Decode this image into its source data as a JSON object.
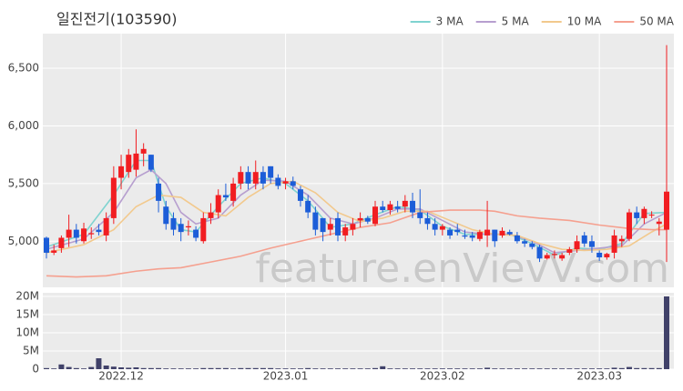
{
  "chart_data": {
    "type": "candlestick",
    "title": "일진전기(103590)",
    "watermark": "feature.enVievV.com",
    "up_color": "#f11d21",
    "down_color": "#1c5dd8",
    "volume_color": "#404169",
    "grid": true,
    "legend": "top-right",
    "categories": [
      null,
      null,
      null,
      null,
      null,
      null,
      null,
      null,
      null,
      null,
      "2022.12",
      null,
      null,
      null,
      null,
      null,
      null,
      null,
      null,
      null,
      null,
      null,
      null,
      null,
      null,
      null,
      null,
      null,
      null,
      null,
      null,
      null,
      "2023.01",
      null,
      null,
      null,
      null,
      null,
      null,
      null,
      null,
      null,
      null,
      null,
      null,
      null,
      null,
      null,
      null,
      null,
      null,
      null,
      null,
      "2023.02",
      null,
      null,
      null,
      null,
      null,
      null,
      null,
      null,
      null,
      null,
      null,
      null,
      null,
      null,
      null,
      null,
      null,
      null,
      null,
      null,
      "2023.03",
      null,
      null,
      null,
      null,
      null,
      null,
      null,
      null,
      null
    ],
    "open": [
      5030,
      4900,
      4940,
      5030,
      5100,
      5000,
      5060,
      5100,
      5050,
      5200,
      5550,
      5600,
      5620,
      5760,
      5750,
      5500,
      5300,
      5200,
      5150,
      5120,
      5100,
      5000,
      5200,
      5250,
      5400,
      5350,
      5500,
      5600,
      5500,
      5600,
      5650,
      5550,
      5500,
      5520,
      5450,
      5350,
      5250,
      5200,
      5100,
      5200,
      5050,
      5100,
      5180,
      5200,
      5150,
      5300,
      5270,
      5300,
      5300,
      5350,
      5250,
      5200,
      5150,
      5100,
      5100,
      5100,
      5050,
      5050,
      5020,
      5050,
      5100,
      5050,
      5080,
      5050,
      5000,
      4980,
      4950,
      4850,
      4880,
      4850,
      4900,
      4930,
      5050,
      5000,
      4900,
      4860,
      4900,
      5000,
      5020,
      5250,
      5200,
      5230,
      5150,
      5100
    ],
    "high": [
      5040,
      4970,
      5050,
      5230,
      5150,
      5160,
      5120,
      5150,
      5250,
      5650,
      5750,
      5800,
      5970,
      5850,
      5750,
      5550,
      5350,
      5250,
      5200,
      5180,
      5130,
      5250,
      5330,
      5450,
      5500,
      5550,
      5650,
      5650,
      5700,
      5650,
      5650,
      5580,
      5550,
      5560,
      5480,
      5400,
      5300,
      5200,
      5200,
      5250,
      5150,
      5200,
      5250,
      5220,
      5350,
      5350,
      5350,
      5350,
      5400,
      5420,
      5450,
      5250,
      5200,
      5150,
      5120,
      5150,
      5100,
      5080,
      5100,
      5350,
      5100,
      5120,
      5100,
      5080,
      5020,
      5000,
      4970,
      4900,
      4920,
      4900,
      4950,
      5050,
      5080,
      5050,
      4920,
      4900,
      5100,
      5050,
      5280,
      5300,
      5300,
      5260,
      5200,
      6700
    ],
    "low": [
      4850,
      4880,
      4900,
      4950,
      4980,
      4980,
      5020,
      5050,
      5000,
      5150,
      5450,
      5550,
      5560,
      5650,
      5600,
      5250,
      5100,
      5050,
      5000,
      5050,
      5000,
      4980,
      5150,
      5200,
      5350,
      5300,
      5450,
      5450,
      5450,
      5450,
      5500,
      5450,
      5450,
      5450,
      5300,
      5200,
      5050,
      5000,
      5050,
      5000,
      5000,
      5050,
      5120,
      5150,
      5130,
      5250,
      5230,
      5250,
      5250,
      5200,
      5150,
      5100,
      5050,
      5050,
      5020,
      5050,
      5020,
      5000,
      5000,
      4950,
      4950,
      5030,
      5050,
      4980,
      4950,
      4930,
      4820,
      4840,
      4850,
      4830,
      4880,
      4900,
      4950,
      4900,
      4830,
      4840,
      4850,
      4950,
      5000,
      5150,
      5150,
      5200,
      5050,
      4820
    ],
    "close": [
      4900,
      4920,
      5030,
      5100,
      5030,
      5110,
      5070,
      5080,
      5200,
      5550,
      5650,
      5750,
      5760,
      5800,
      5620,
      5350,
      5150,
      5100,
      5080,
      5130,
      5030,
      5200,
      5250,
      5400,
      5380,
      5500,
      5600,
      5500,
      5600,
      5500,
      5550,
      5480,
      5520,
      5480,
      5350,
      5250,
      5100,
      5080,
      5150,
      5050,
      5120,
      5150,
      5200,
      5170,
      5300,
      5270,
      5320,
      5280,
      5350,
      5250,
      5200,
      5150,
      5100,
      5130,
      5050,
      5080,
      5040,
      5030,
      5080,
      5100,
      5000,
      5090,
      5060,
      5000,
      4980,
      4950,
      4850,
      4880,
      4890,
      4880,
      4930,
      5000,
      4980,
      4950,
      4860,
      4890,
      5050,
      5020,
      5250,
      5200,
      5280,
      5230,
      5170,
      5430
    ],
    "volume": [
      300000,
      200000,
      1300000,
      600000,
      300000,
      200000,
      600000,
      3000000,
      1000000,
      700000,
      500000,
      400000,
      500000,
      300000,
      300000,
      300000,
      200000,
      200000,
      200000,
      200000,
      200000,
      300000,
      300000,
      300000,
      300000,
      200000,
      300000,
      300000,
      300000,
      300000,
      300000,
      200000,
      200000,
      200000,
      200000,
      300000,
      200000,
      200000,
      200000,
      200000,
      200000,
      200000,
      200000,
      200000,
      300000,
      800000,
      200000,
      200000,
      200000,
      200000,
      200000,
      200000,
      200000,
      200000,
      200000,
      200000,
      200000,
      200000,
      200000,
      400000,
      200000,
      200000,
      200000,
      200000,
      200000,
      200000,
      200000,
      200000,
      200000,
      200000,
      200000,
      200000,
      200000,
      200000,
      200000,
      200000,
      400000,
      300000,
      600000,
      300000,
      300000,
      300000,
      300000,
      20000000
    ],
    "ylim": [
      4600,
      6800
    ],
    "yticks": [
      {
        "value": 5000,
        "label": "5,000"
      },
      {
        "value": 5500,
        "label": "5,500"
      },
      {
        "value": 6000,
        "label": "6,000"
      },
      {
        "value": 6500,
        "label": "6,500"
      }
    ],
    "volume_ylim": [
      0,
      21000000
    ],
    "volume_yticks": [
      0,
      {
        "value": 5000000,
        "label": "5M"
      },
      {
        "value": 10000000,
        "label": "10M"
      },
      {
        "value": 15000000,
        "label": "15M"
      },
      {
        "value": 20000000,
        "label": "20M"
      }
    ],
    "series": [
      {
        "name": "3 MA",
        "color": "#7fd3d0",
        "x": [
          0,
          5,
          9,
          12,
          14,
          16,
          18,
          20,
          23,
          26,
          29,
          32,
          35,
          38,
          41,
          44,
          47,
          50,
          53,
          56,
          59,
          62,
          65,
          68,
          71,
          74,
          77,
          80,
          83
        ],
        "values": [
          4950,
          5060,
          5400,
          5700,
          5700,
          5300,
          5100,
          5080,
          5300,
          5500,
          5550,
          5500,
          5350,
          5120,
          5150,
          5230,
          5300,
          5270,
          5130,
          5060,
          5060,
          5060,
          4980,
          4880,
          4940,
          4930,
          4980,
          5240,
          5250
        ]
      },
      {
        "name": "5 MA",
        "color": "#b79fcf",
        "x": [
          0,
          5,
          9,
          12,
          14,
          16,
          18,
          20,
          23,
          26,
          29,
          32,
          35,
          38,
          41,
          44,
          47,
          50,
          53,
          56,
          59,
          62,
          65,
          68,
          71,
          74,
          77,
          80,
          83
        ],
        "values": [
          4930,
          5020,
          5250,
          5550,
          5620,
          5500,
          5250,
          5150,
          5200,
          5400,
          5530,
          5520,
          5400,
          5200,
          5150,
          5200,
          5280,
          5280,
          5180,
          5080,
          5060,
          5060,
          5000,
          4900,
          4920,
          4940,
          4960,
          5150,
          5250
        ]
      },
      {
        "name": "10 MA",
        "color": "#f2c98d",
        "x": [
          0,
          5,
          9,
          12,
          15,
          18,
          21,
          24,
          27,
          30,
          33,
          36,
          39,
          42,
          45,
          48,
          51,
          54,
          57,
          60,
          63,
          66,
          69,
          72,
          75,
          78,
          81,
          83
        ],
        "values": [
          4900,
          4970,
          5100,
          5300,
          5400,
          5380,
          5250,
          5220,
          5380,
          5500,
          5520,
          5420,
          5250,
          5170,
          5200,
          5260,
          5260,
          5180,
          5100,
          5060,
          5050,
          4980,
          4930,
          4920,
          4930,
          4960,
          5080,
          5150
        ]
      },
      {
        "name": "50 MA",
        "color": "#f5a08f",
        "x": [
          0,
          4,
          8,
          12,
          15,
          18,
          22,
          26,
          30,
          34,
          38,
          42,
          46,
          50,
          54,
          58,
          60,
          63,
          66,
          70,
          74,
          78,
          81,
          83
        ],
        "values": [
          4700,
          4690,
          4700,
          4740,
          4760,
          4770,
          4820,
          4870,
          4940,
          5000,
          5060,
          5120,
          5160,
          5250,
          5270,
          5270,
          5260,
          5220,
          5200,
          5180,
          5140,
          5110,
          5100,
          5100
        ]
      }
    ]
  }
}
